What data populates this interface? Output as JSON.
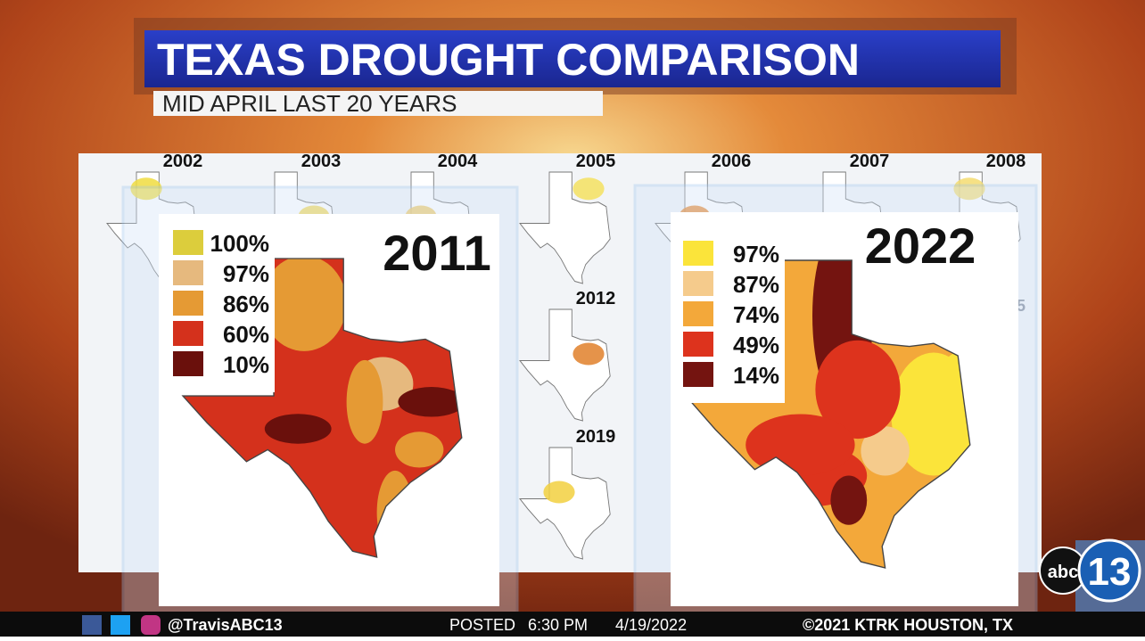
{
  "header": {
    "title": "TEXAS DROUGHT COMPARISON",
    "subtitle": "MID APRIL LAST 20 YEARS"
  },
  "thumbnails": [
    {
      "year": "2002"
    },
    {
      "year": "2003"
    },
    {
      "year": "2004"
    },
    {
      "year": "2005"
    },
    {
      "year": "2006"
    },
    {
      "year": "2007"
    },
    {
      "year": "2008"
    },
    {
      "year": "2012"
    },
    {
      "year": "2019"
    }
  ],
  "partial_label": "5",
  "panels": [
    {
      "year": "2011",
      "legend": [
        {
          "label": "100%",
          "color": "#dccd3c"
        },
        {
          "label": "97%",
          "color": "#e6b97e"
        },
        {
          "label": "86%",
          "color": "#e59a34"
        },
        {
          "label": "60%",
          "color": "#d4311c"
        },
        {
          "label": "10%",
          "color": "#6a100c"
        }
      ]
    },
    {
      "year": "2022",
      "legend": [
        {
          "label": "97%",
          "color": "#fbe43a"
        },
        {
          "label": "87%",
          "color": "#f5cb8c"
        },
        {
          "label": "74%",
          "color": "#f3a83a"
        },
        {
          "label": "49%",
          "color": "#dd331d"
        },
        {
          "label": "14%",
          "color": "#741410"
        }
      ]
    }
  ],
  "footer": {
    "handle": "@TravisABC13",
    "posted_label": "POSTED",
    "time": "6:30 PM",
    "date": "4/19/2022",
    "copyright": "©2021 KTRK  HOUSTON, TX"
  },
  "logo": {
    "network": "abc",
    "channel": "13"
  }
}
